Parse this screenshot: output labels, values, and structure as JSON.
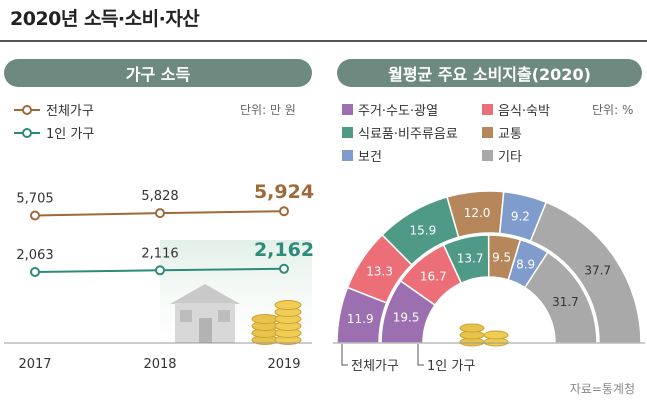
{
  "title": "2020년 소득·소비·자산",
  "left_panel": {
    "header": "가구 소득",
    "unit": "단위: 만 원"
  },
  "right_panel": {
    "header": "월평균 주요 소비지출(2020)",
    "unit": "단위: %",
    "outer_label": "전체가구",
    "inner_label": "1인 가구"
  },
  "source": "자료=통계청",
  "colors": {
    "total_line": "#a0693a",
    "single_line": "#2e8a7a",
    "housing": "#9b6fb0",
    "food": "#ec6f78",
    "groceries": "#4e9a86",
    "transport": "#b5875a",
    "health": "#7f9ccc",
    "other": "#a9a9a9"
  },
  "chart_data": [
    {
      "type": "line",
      "title": "가구 소득",
      "ylabel": "단위: 만 원",
      "x": [
        "2017",
        "2018",
        "2019"
      ],
      "series": [
        {
          "name": "전체가구",
          "values": [
            5705,
            5828,
            5924
          ]
        },
        {
          "name": "1인 가구",
          "values": [
            2063,
            2116,
            2162
          ]
        }
      ]
    },
    {
      "type": "pie",
      "title": "월평균 주요 소비지출(2020)",
      "categories": [
        "주거·수도·광열",
        "음식·숙박",
        "식료품·비주류음료",
        "교통",
        "보건",
        "기타"
      ],
      "series": [
        {
          "name": "전체가구",
          "values": [
            11.9,
            13.3,
            15.9,
            12.0,
            9.2,
            37.7
          ]
        },
        {
          "name": "1인 가구",
          "values": [
            19.5,
            16.7,
            13.7,
            9.5,
            8.9,
            31.7
          ]
        }
      ]
    }
  ]
}
